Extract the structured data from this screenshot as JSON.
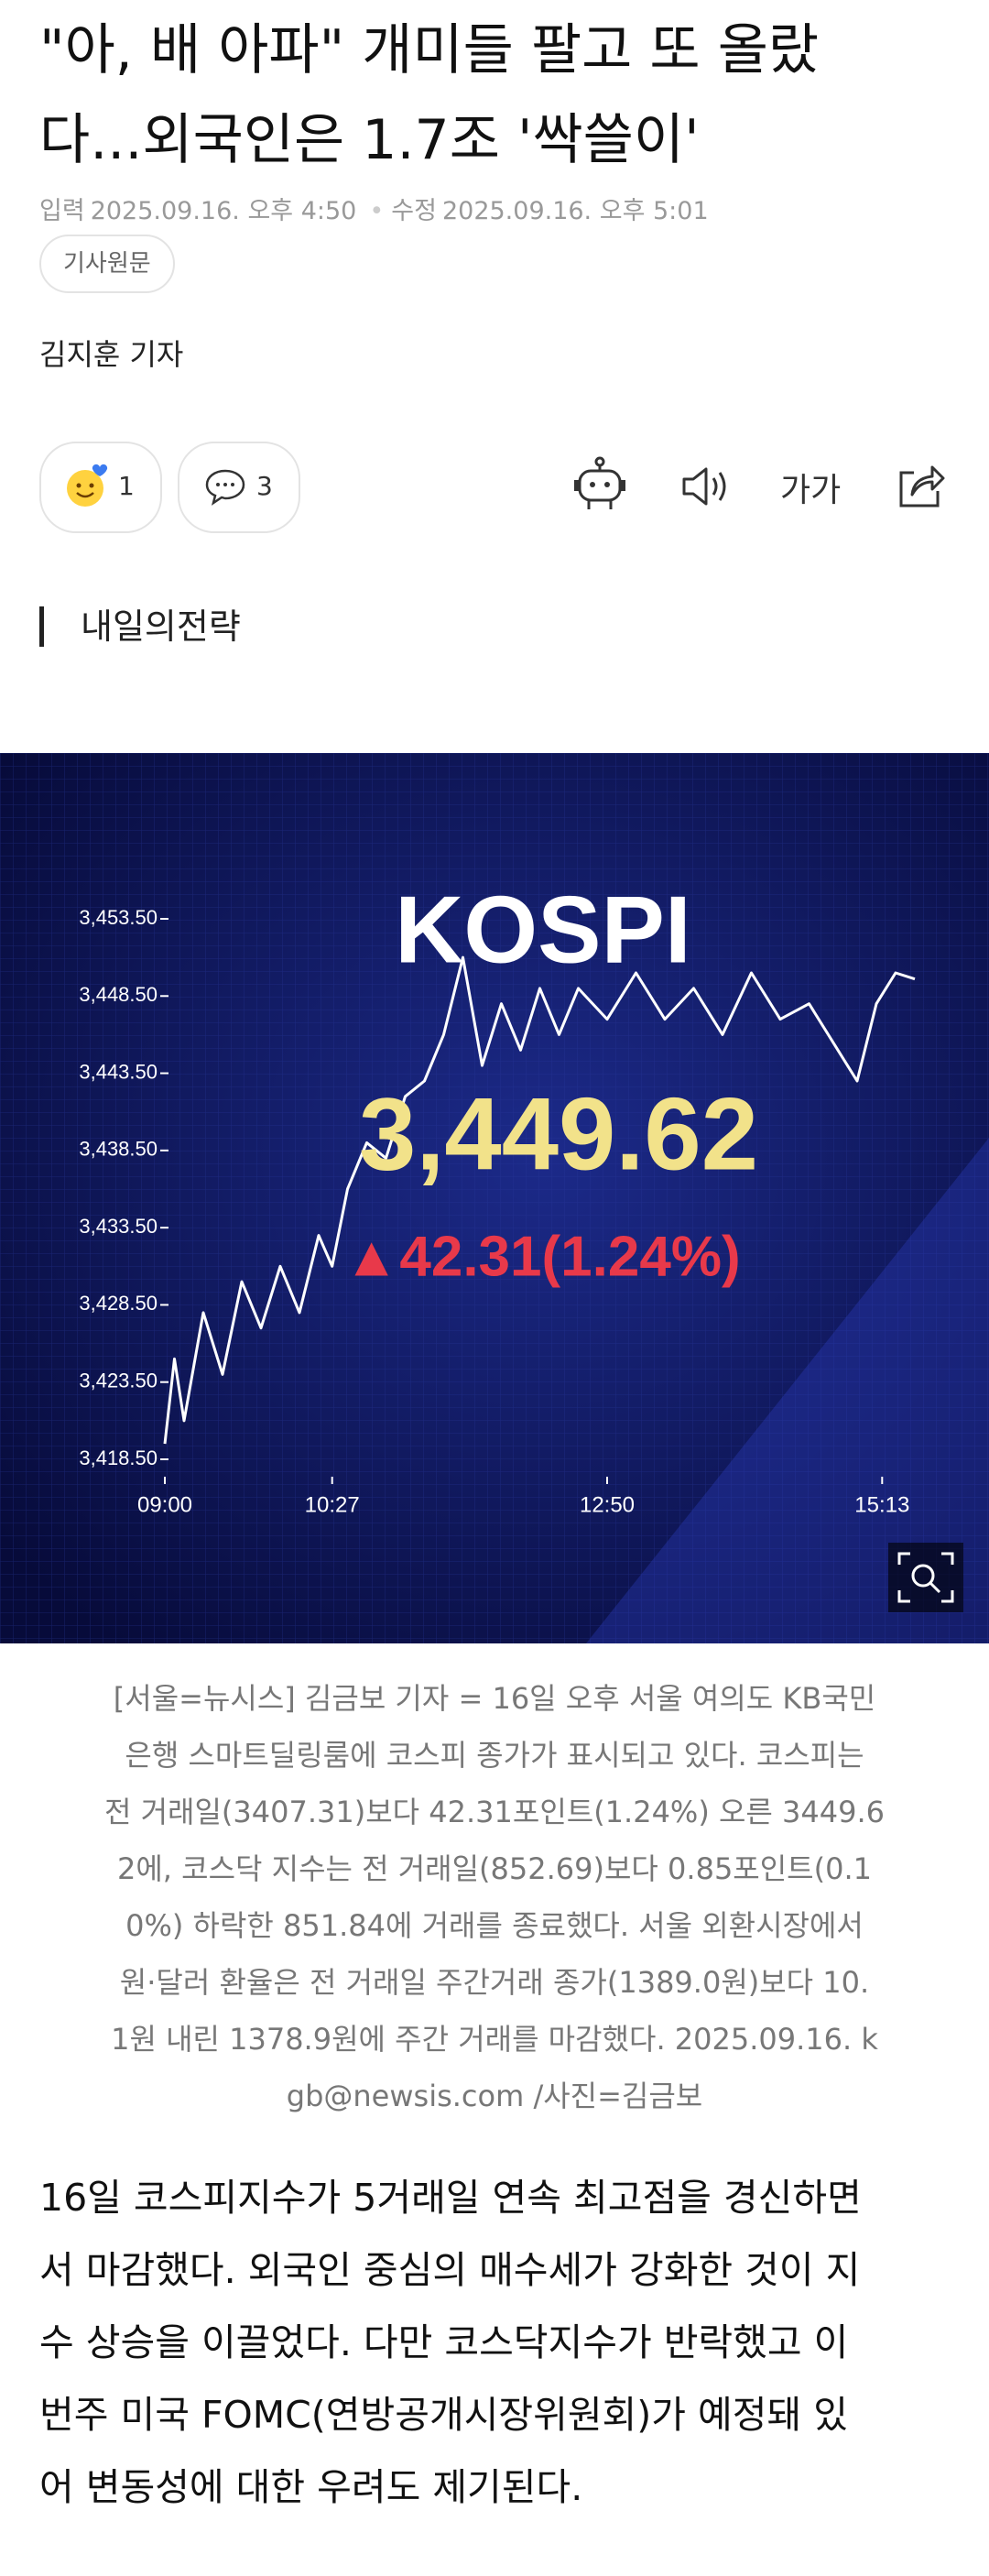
{
  "header": {
    "title_lines": [
      "\"아, 배 아파\" 개미들 팔고 또 올랐",
      "다...외국인은 1.7조 '싹쓸이'"
    ],
    "input_label": "입력",
    "input_time": "2025.09.16. 오후 4:50",
    "edit_label": "수정",
    "edit_time": "2025.09.16. 오후 5:01",
    "original_button": "기사원문",
    "reporter": "김지훈 기자"
  },
  "reactions": {
    "like_count": "1",
    "comment_count": "3",
    "font_button": "가가"
  },
  "section": "내일의전략",
  "photo": {
    "title": "KOSPI",
    "price": "3,449.62",
    "change": "▲42.31(1.24%)",
    "chart": {
      "type": "line",
      "color": "#ffffff",
      "x": [
        "09:00",
        "09:05",
        "09:10",
        "09:20",
        "09:30",
        "09:40",
        "09:50",
        "10:00",
        "10:10",
        "10:20",
        "10:27",
        "10:35",
        "10:45",
        "10:55",
        "11:05",
        "11:15",
        "11:25",
        "11:35",
        "11:45",
        "11:55",
        "12:05",
        "12:15",
        "12:25",
        "12:35",
        "12:50",
        "13:05",
        "13:20",
        "13:35",
        "13:50",
        "14:05",
        "14:20",
        "14:35",
        "14:50",
        "15:00",
        "15:10",
        "15:20",
        "15:30"
      ],
      "values": [
        3419.5,
        3425,
        3421,
        3428,
        3424,
        3430,
        3427,
        3431,
        3428,
        3433,
        3431,
        3436,
        3439,
        3438,
        3442,
        3443,
        3446,
        3451,
        3444,
        3448,
        3445,
        3449,
        3446,
        3449,
        3447,
        3450,
        3447,
        3449,
        3446,
        3450,
        3447,
        3448,
        3445,
        3443,
        3448,
        3450,
        3449.6
      ],
      "xlim": [
        "09:00",
        "15:30"
      ],
      "xticks": [
        "09:00",
        "10:27",
        "12:50",
        "15:13"
      ],
      "ylim": [
        3418.5,
        3453.5
      ],
      "yticks": [
        {
          "value": 3418.5,
          "label": "3,418.50"
        },
        {
          "value": 3423.5,
          "label": "3,423.50"
        },
        {
          "value": 3428.5,
          "label": "3,428.50"
        },
        {
          "value": 3433.5,
          "label": "3,433.50"
        },
        {
          "value": 3438.5,
          "label": "3,438.50"
        },
        {
          "value": 3443.5,
          "label": "3,443.50"
        },
        {
          "value": 3448.5,
          "label": "3,448.50"
        },
        {
          "value": 3453.5,
          "label": "3,453.50"
        }
      ]
    }
  },
  "caption_lines": [
    "[서울=뉴시스] 김금보 기자 = 16일 오후 서울 여의도 KB국민",
    "은행 스마트딜링룸에 코스피 종가가 표시되고 있다. 코스피는",
    "전 거래일(3407.31)보다 42.31포인트(1.24%) 오른 3449.6",
    "2에, 코스닥 지수는 전 거래일(852.69)보다 0.85포인트(0.1",
    "0%) 하락한 851.84에 거래를 종료했다. 서울 외환시장에서",
    "원·달러 환율은 전 거래일 주간거래 종가(1389.0원)보다 10.",
    "1원 내린 1378.9원에 주간 거래를 마감했다. 2025.09.16. k",
    "gb@newsis.com /사진=김금보"
  ],
  "body_lines": [
    "16일 코스피지수가 5거래일 연속 최고점을 경신하면",
    "서 마감했다. 외국인 중심의 매수세가 강화한 것이 지",
    "수 상승을 이끌었다. 다만 코스닥지수가 반락했고 이",
    "번주 미국 FOMC(연방공개시장위원회)가 예정돼 있",
    "어 변동성에 대한 우려도 제기된다."
  ]
}
